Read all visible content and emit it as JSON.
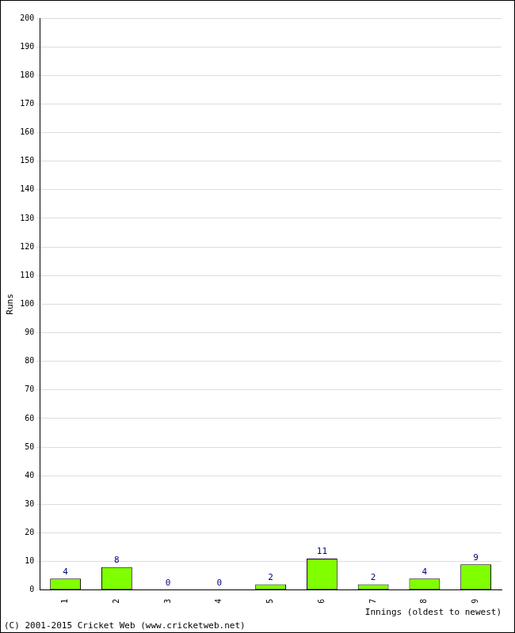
{
  "chart_data": {
    "type": "bar",
    "categories": [
      "1",
      "2",
      "3",
      "4",
      "5",
      "6",
      "7",
      "8",
      "9"
    ],
    "values": [
      4,
      8,
      0,
      0,
      2,
      11,
      2,
      4,
      9
    ],
    "color": "#80ff00",
    "x_label": "Innings (oldest to newest)",
    "y_label": "Runs",
    "ylim": [
      0,
      200
    ],
    "yticks": [
      0,
      10,
      20,
      30,
      40,
      50,
      60,
      70,
      80,
      90,
      100,
      110,
      120,
      130,
      140,
      150,
      160,
      170,
      180,
      190,
      200
    ],
    "grid": true,
    "data_labels": true,
    "annotations": [
      "(C) 2001-2015 Cricket Web (www.cricketweb.net)"
    ]
  }
}
